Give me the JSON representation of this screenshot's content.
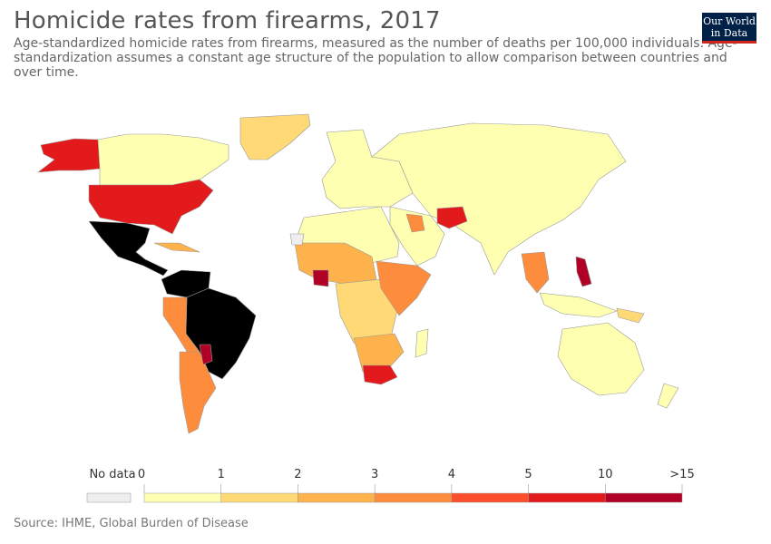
{
  "header": {
    "title": "Homicide rates from firearms, 2017",
    "subtitle": "Age-standardized homicide rates from firearms, measured as the number of deaths per 100,000 individuals. Age-standardization assumes a constant age structure of the population to allow comparison between countries and over time.",
    "logo_line1": "Our World",
    "logo_line2": "in Data"
  },
  "legend": {
    "no_data_label": "No data",
    "no_data_color": "#eeeeee",
    "tick_labels": [
      "0",
      "1",
      "2",
      "3",
      "4",
      "5",
      "10",
      ">15"
    ],
    "bin_colors": [
      "#ffffb2",
      "#fed976",
      "#feb24c",
      "#fd8d3c",
      "#fc4e2a",
      "#e31a1c",
      "#b10026"
    ]
  },
  "map": {
    "border_color": "#999999"
  },
  "footer": {
    "source": "Source: IHME, Global Burden of Disease"
  }
}
